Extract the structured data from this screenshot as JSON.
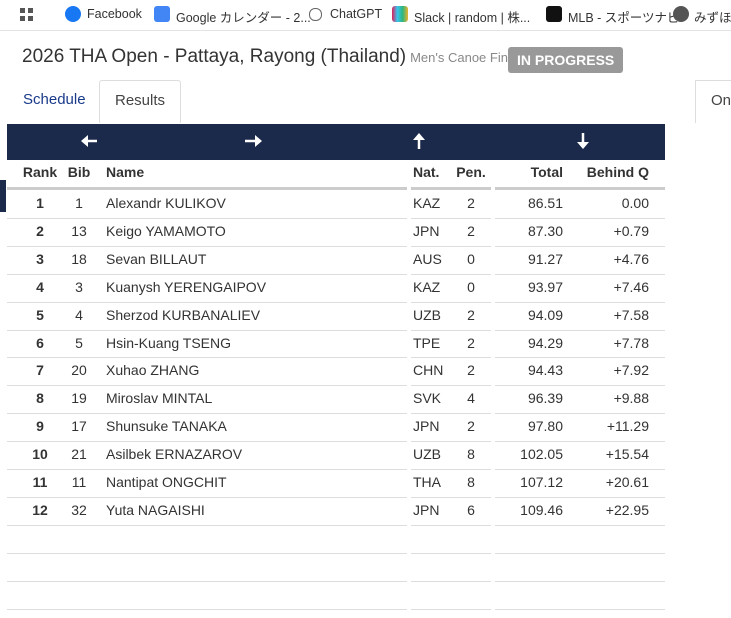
{
  "bookmarks": [
    "Facebook",
    "Google カレンダー - 2...",
    "ChatGPT",
    "Slack | random | 株...",
    "MLB - スポーツナビ",
    "みずほ"
  ],
  "header": {
    "title": "2026 THA Open - Pattaya, Rayong (Thailand)",
    "subtitle": "Men's Canoe Finals",
    "status": "IN PROGRESS"
  },
  "tabs": [
    "Schedule",
    "Results",
    "On"
  ],
  "table": {
    "columns": [
      "Rank",
      "Bib",
      "Name",
      "Nat.",
      "Pen.",
      "Total",
      "Behind Q"
    ],
    "rows": [
      [
        "1",
        "1",
        "Alexandr KULIKOV",
        "KAZ",
        "2",
        "86.51",
        "0.00"
      ],
      [
        "2",
        "13",
        "Keigo YAMAMOTO",
        "JPN",
        "2",
        "87.30",
        "+0.79"
      ],
      [
        "3",
        "18",
        "Sevan BILLAUT",
        "AUS",
        "0",
        "91.27",
        "+4.76"
      ],
      [
        "4",
        "3",
        "Kuanysh YERENGAIPOV",
        "KAZ",
        "0",
        "93.97",
        "+7.46"
      ],
      [
        "5",
        "4",
        "Sherzod KURBANALIEV",
        "UZB",
        "2",
        "94.09",
        "+7.58"
      ],
      [
        "6",
        "5",
        "Hsin-Kuang TSENG",
        "TPE",
        "2",
        "94.29",
        "+7.78"
      ],
      [
        "7",
        "20",
        "Xuhao ZHANG",
        "CHN",
        "2",
        "94.43",
        "+7.92"
      ],
      [
        "8",
        "19",
        "Miroslav MINTAL",
        "SVK",
        "4",
        "96.39",
        "+9.88"
      ],
      [
        "9",
        "17",
        "Shunsuke TANAKA",
        "JPN",
        "2",
        "97.80",
        "+11.29"
      ],
      [
        "10",
        "21",
        "Asilbek ERNAZAROV",
        "UZB",
        "8",
        "102.05",
        "+15.54"
      ],
      [
        "11",
        "11",
        "Nantipat ONGCHIT",
        "THA",
        "8",
        "107.12",
        "+20.61"
      ],
      [
        "12",
        "32",
        "Yuta NAGAISHI",
        "JPN",
        "6",
        "109.46",
        "+22.95"
      ]
    ]
  }
}
